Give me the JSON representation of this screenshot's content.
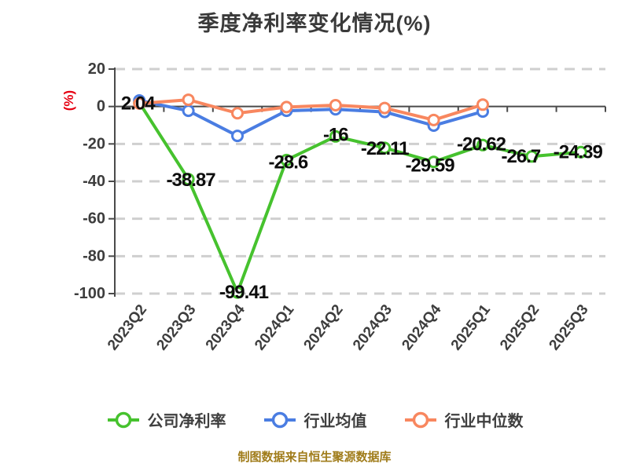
{
  "title": "季度净利率变化情况(%)",
  "y_axis_unit_label": "(%)",
  "footer_note": "制图数据来自恒生聚源数据库",
  "legend": {
    "items": [
      {
        "label": "公司净利率",
        "color": "#46c22e"
      },
      {
        "label": "行业均值",
        "color": "#4a7de2"
      },
      {
        "label": "行业中位数",
        "color": "#f8875f"
      }
    ]
  },
  "colors": {
    "axis": "#4a4a4a",
    "grid": "#cfcfcf",
    "tick_text": "#3d3d3d",
    "data_label": "#0d0d0d",
    "title": "#3a3a3a",
    "unit_label": "#e60012",
    "footer": "#a07c1a",
    "marker_fill": "#ffffff"
  },
  "chart_data": {
    "type": "line",
    "title": "季度净利率变化情况(%)",
    "ylabel": "(%)",
    "categories": [
      "2023Q2",
      "2023Q3",
      "2023Q4",
      "2024Q1",
      "2024Q2",
      "2024Q3",
      "2024Q4",
      "2025Q1",
      "2025Q2",
      "2025Q3"
    ],
    "series": [
      {
        "name": "公司净利率",
        "color": "#46c22e",
        "values": [
          2.04,
          -38.87,
          -99.41,
          -28.6,
          -16,
          -22.11,
          -29.59,
          -20.62,
          -26.7,
          -24.39
        ],
        "data_labels": [
          "2.04",
          "-38.87",
          "-99.41",
          "-28.6",
          "-16",
          "-22.11",
          "-29.59",
          "-20.62",
          "-26.7",
          "-24.39"
        ]
      },
      {
        "name": "行业均值",
        "color": "#4a7de2",
        "values": [
          3.2,
          -2.3,
          -15.7,
          -2.3,
          -1.5,
          -2.9,
          -10.2,
          -2.7,
          null,
          null
        ],
        "data_labels": []
      },
      {
        "name": "行业中位数",
        "color": "#f8875f",
        "values": [
          1.6,
          3.6,
          -3.6,
          -0.3,
          0.7,
          -0.8,
          -7.2,
          1.0,
          null,
          null
        ],
        "data_labels": []
      }
    ],
    "ylim": [
      -100,
      20
    ],
    "yticks": [
      20,
      0,
      -20,
      -40,
      -60,
      -80,
      -100
    ],
    "grid": "horizontal-dashed",
    "legend_position": "bottom"
  }
}
